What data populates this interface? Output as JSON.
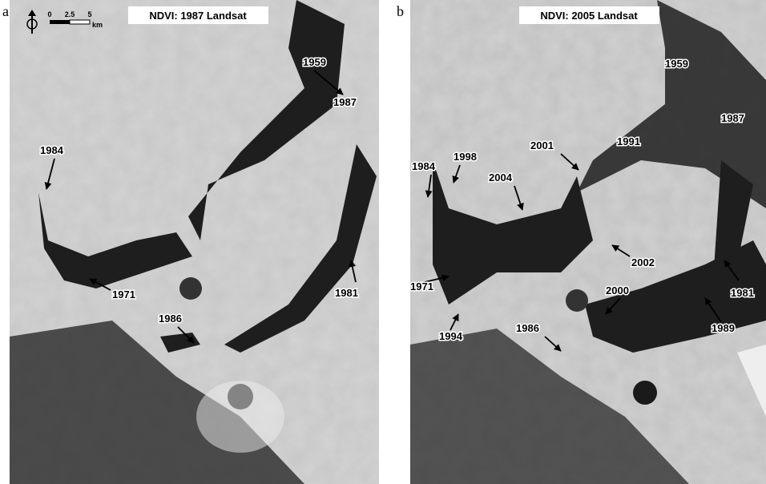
{
  "panels": [
    {
      "letter": "a",
      "title": "NDVI: 1987 Landsat",
      "scale_bar": {
        "ticks": [
          "0",
          "2.5",
          "5"
        ],
        "unit": "km"
      },
      "labels": [
        "1959",
        "1987",
        "1984",
        "1971",
        "1981",
        "1986"
      ]
    },
    {
      "letter": "b",
      "title": "NDVI: 2005 Landsat",
      "labels": [
        "1959",
        "1987",
        "2001",
        "1991",
        "1998",
        "1984",
        "2004",
        "2002",
        "1971",
        "2000",
        "1981",
        "1994",
        "1986",
        "1989"
      ]
    }
  ]
}
